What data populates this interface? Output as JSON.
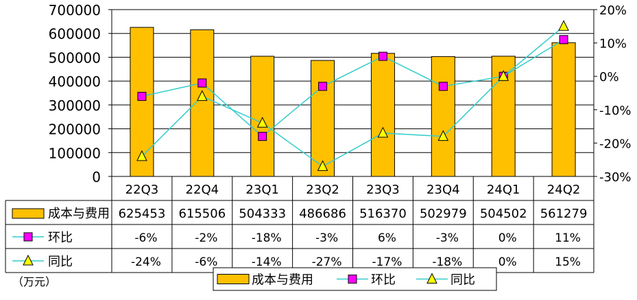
{
  "chart_data": {
    "type": "bar",
    "categories": [
      "22Q3",
      "22Q4",
      "23Q1",
      "23Q2",
      "23Q3",
      "23Q4",
      "24Q1",
      "24Q2"
    ],
    "series": [
      {
        "name": "成本与费用",
        "kind": "bar",
        "axis": "left",
        "color": "#FFC000",
        "values": [
          625453,
          615506,
          504333,
          486686,
          516370,
          502979,
          504502,
          561279
        ]
      },
      {
        "name": "环比",
        "kind": "line",
        "axis": "right",
        "marker": "square",
        "color": "#FF00FF",
        "line_color": "#33CCCC",
        "values": [
          -6,
          -2,
          -18,
          -3,
          6,
          -3,
          0,
          11
        ],
        "labels": [
          "-6%",
          "-2%",
          "-18%",
          "-3%",
          "6%",
          "-3%",
          "0%",
          "11%"
        ]
      },
      {
        "name": "同比",
        "kind": "line",
        "axis": "right",
        "marker": "triangle",
        "color": "#FFFF00",
        "line_color": "#33CCCC",
        "values": [
          -24,
          -6,
          -14,
          -27,
          -17,
          -18,
          0,
          15
        ],
        "labels": [
          "-24%",
          "-6%",
          "-14%",
          "-27%",
          "-17%",
          "-18%",
          "0%",
          "15%"
        ]
      }
    ],
    "left_axis": {
      "ylim": [
        0,
        700000
      ],
      "ticks": [
        "0",
        "100000",
        "200000",
        "300000",
        "400000",
        "500000",
        "600000",
        "700000"
      ]
    },
    "right_axis": {
      "ylim": [
        -30,
        20
      ],
      "ticks": [
        "-30%",
        "-20%",
        "-10%",
        "0%",
        "10%",
        "20%"
      ]
    },
    "unit_note": "（万元）",
    "legend": {
      "placement": "bottom",
      "entries": [
        "成本与费用",
        "环比",
        "同比"
      ]
    },
    "data_table": true,
    "grid": true,
    "bar_values_labels": [
      "625453",
      "615506",
      "504333",
      "486686",
      "516370",
      "502979",
      "504502",
      "561279"
    ]
  }
}
